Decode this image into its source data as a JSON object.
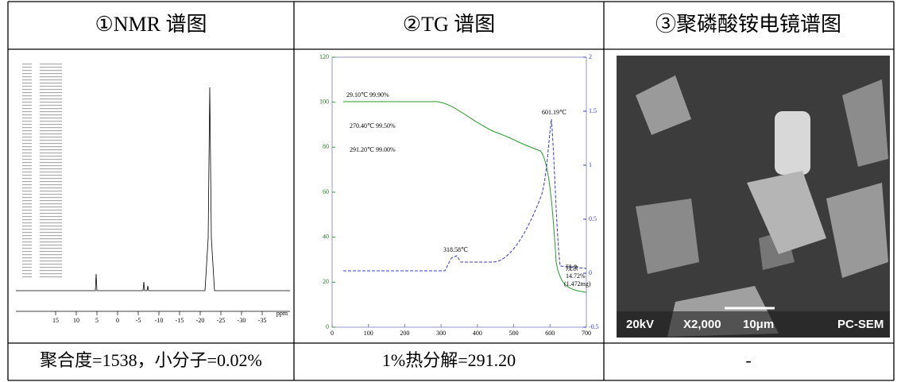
{
  "table": {
    "headers": [
      "①NMR 谱图",
      "②TG 谱图",
      "③聚磷酸铵电镜谱图"
    ],
    "rows": [
      [
        "聚合度=1538，小分子=0.02%",
        "1%热分解=291.20",
        "-"
      ]
    ]
  },
  "nmr": {
    "xticks": [
      15,
      10,
      5,
      0,
      -5,
      -10,
      -15,
      -20,
      -25,
      -30,
      -35
    ],
    "unit": "ppm"
  },
  "tg": {
    "xlim": [
      0,
      700
    ],
    "xticks": [
      0,
      100,
      200,
      300,
      400,
      500,
      600,
      700
    ],
    "ylim": [
      0,
      120
    ],
    "yticks": [
      0,
      20,
      40,
      60,
      80,
      100,
      120
    ],
    "y2lim": [
      -0.5,
      2.0
    ],
    "y2ticks": [
      -0.5,
      0.0,
      0.5,
      1.0,
      1.5,
      2.0
    ],
    "annotations": [
      "29.10℃ 99.90%",
      "270.40℃ 99.50%",
      "291.20℃ 99.00%",
      "601.19℃",
      "318.58℃",
      "残余",
      "14.72%",
      "(1.472mg)"
    ]
  },
  "sem": {
    "labels": [
      "20kV",
      "X2,000",
      "10μm",
      "PC-SEM"
    ]
  }
}
